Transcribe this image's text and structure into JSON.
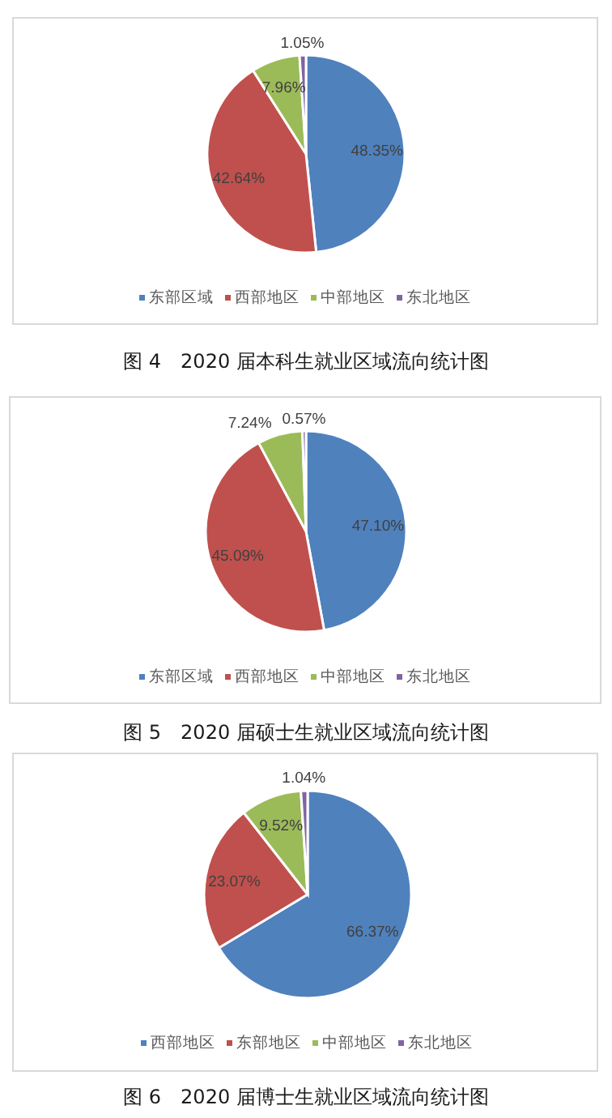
{
  "chart_data": [
    {
      "type": "pie",
      "title": "图 4　2020 届本科生就业区域流向统计图",
      "categories": [
        "东部区域",
        "西部地区",
        "中部地区",
        "东北地区"
      ],
      "values": [
        48.35,
        42.64,
        7.96,
        1.05
      ],
      "value_labels": [
        "48.35%",
        "42.64%",
        "7.96%",
        "1.05%"
      ],
      "colors": [
        "#4f81bd",
        "#c0504d",
        "#9bbb59",
        "#8064a2"
      ],
      "legend": "bottom"
    },
    {
      "type": "pie",
      "title": "图 5　2020 届硕士生就业区域流向统计图",
      "categories": [
        "东部区域",
        "西部地区",
        "中部地区",
        "东北地区"
      ],
      "values": [
        47.1,
        45.09,
        7.24,
        0.57
      ],
      "value_labels": [
        "47.10%",
        "45.09%",
        "7.24%",
        "0.57%"
      ],
      "colors": [
        "#4f81bd",
        "#c0504d",
        "#9bbb59",
        "#8064a2"
      ],
      "legend": "bottom"
    },
    {
      "type": "pie",
      "title": "图 6　2020 届博士生就业区域流向统计图",
      "categories": [
        "西部地区",
        "东部地区",
        "中部地区",
        "东北地区"
      ],
      "values": [
        66.37,
        23.07,
        9.52,
        1.04
      ],
      "value_labels": [
        "66.37%",
        "23.07%",
        "9.52%",
        "1.04%"
      ],
      "colors": [
        "#4f81bd",
        "#c0504d",
        "#9bbb59",
        "#8064a2"
      ],
      "legend": "bottom"
    }
  ]
}
